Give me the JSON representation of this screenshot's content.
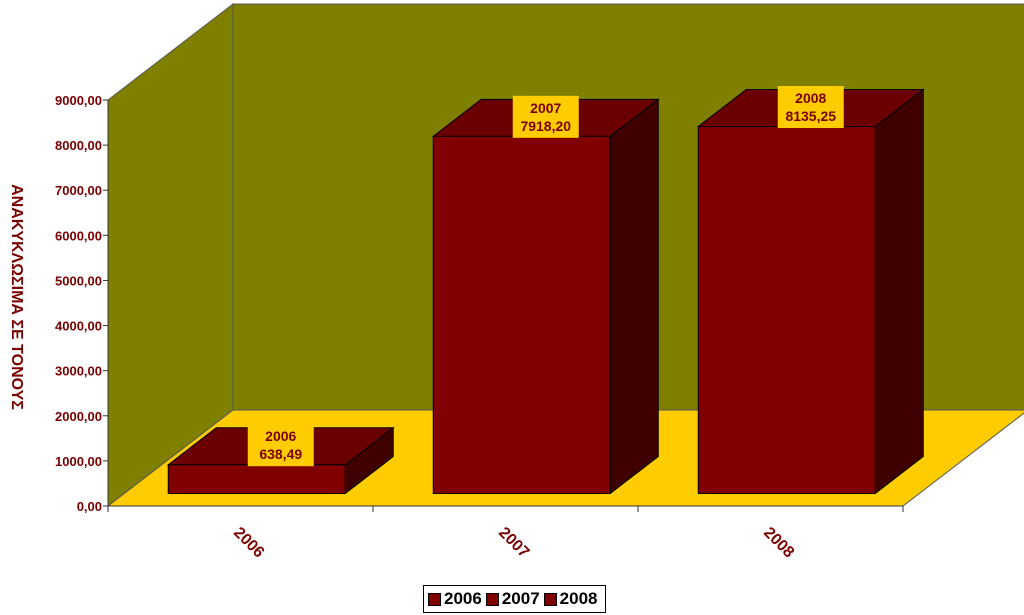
{
  "chart_data": {
    "type": "bar",
    "categories": [
      "2006",
      "2007",
      "2008"
    ],
    "values": [
      638.49,
      7918.2,
      8135.25
    ],
    "data_labels": [
      {
        "series": "2006",
        "value": "638,49"
      },
      {
        "series": "2007",
        "value": "7918,20"
      },
      {
        "series": "2008",
        "value": "8135,25"
      }
    ],
    "ylabel": "ΑΝΑΚΥΚΛΩΣΙΜΑ ΣΕ ΤΟΝΟΥΣ",
    "ylim": [
      0,
      9000
    ],
    "ytick_labels": [
      "0,00",
      "1000,00",
      "2000,00",
      "3000,00",
      "4000,00",
      "5000,00",
      "6000,00",
      "7000,00",
      "8000,00",
      "9000,00"
    ],
    "legend": [
      "2006",
      "2007",
      "2008"
    ],
    "legend_position": "bottom",
    "three_d": true,
    "colors": {
      "bar_front": "#800000",
      "bar_top": "#6a0000",
      "bar_side": "#3f0000",
      "back_wall": "#808000",
      "floor": "#ffcc00",
      "label_box": "#ffcc00",
      "text": "#7a0000"
    }
  }
}
